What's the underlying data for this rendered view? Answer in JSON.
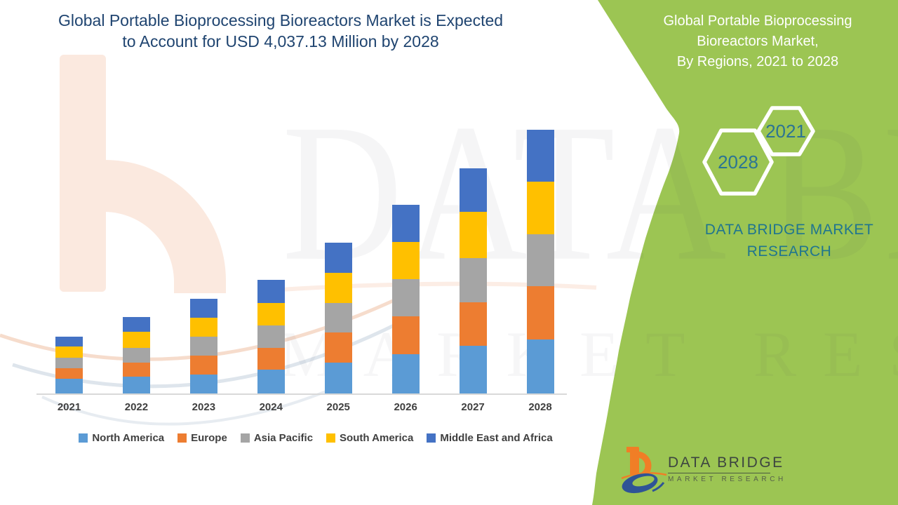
{
  "header": {
    "title_line1": "Global Portable Bioprocessing Bioreactors Market is Expected",
    "title_line2": "to Account for USD 4,037.13 Million by 2028"
  },
  "side_panel": {
    "bg_color": "#9CC553",
    "title_line1": "Global Portable Bioprocessing",
    "title_line2": "Bioreactors Market,",
    "title_line3": "By Regions, 2021 to 2028",
    "hexagon_back_label": "2028",
    "hexagon_front_label": "2021",
    "hexagon_text_color": "#2C7493",
    "brand_line1": "DATA BRIDGE MARKET",
    "brand_line2": "RESEARCH",
    "brand_text_color": "#20758F"
  },
  "watermark": {
    "row1": "DATA BRIDGE",
    "row2": "MARKET RESEARCH"
  },
  "footer_logo": {
    "name": "DATA BRIDGE",
    "subtitle": "MARKET RESEARCH",
    "b_color": "#F07E26",
    "swoosh_color": "#2F5496"
  },
  "chart_data": {
    "type": "bar",
    "stacked": true,
    "unit": "USD Million",
    "title": "Global Portable Bioprocessing Bioreactors Market, By Regions, 2021 to 2028",
    "xlabel": "",
    "ylabel": "",
    "ylim": [
      0,
      4200
    ],
    "grid": false,
    "legend_position": "bottom",
    "stated_total_2028": 4037.13,
    "categories": [
      "2021",
      "2022",
      "2023",
      "2024",
      "2025",
      "2026",
      "2027",
      "2028"
    ],
    "series": [
      {
        "name": "North America",
        "color": "#5B9BD5",
        "values": [
          230,
          260,
          295,
          368,
          472,
          598,
          727,
          823
        ]
      },
      {
        "name": "Europe",
        "color": "#ED7D31",
        "values": [
          152,
          215,
          287,
          330,
          458,
          583,
          669,
          822
        ]
      },
      {
        "name": "Asia Pacific",
        "color": "#A5A5A5",
        "values": [
          161,
          226,
          290,
          347,
          457,
          572,
          680,
          788
        ]
      },
      {
        "name": "South America",
        "color": "#FFC000",
        "values": [
          172,
          240,
          293,
          344,
          459,
          563,
          705,
          806
        ]
      },
      {
        "name": "Middle East and Africa",
        "color": "#4472C4",
        "values": [
          150,
          226,
          290,
          348,
          462,
          573,
          666,
          798.13
        ]
      }
    ],
    "totals": [
      865,
      1167,
      1455,
      1737,
      2308,
      2889,
      3447,
      4037.13
    ]
  }
}
